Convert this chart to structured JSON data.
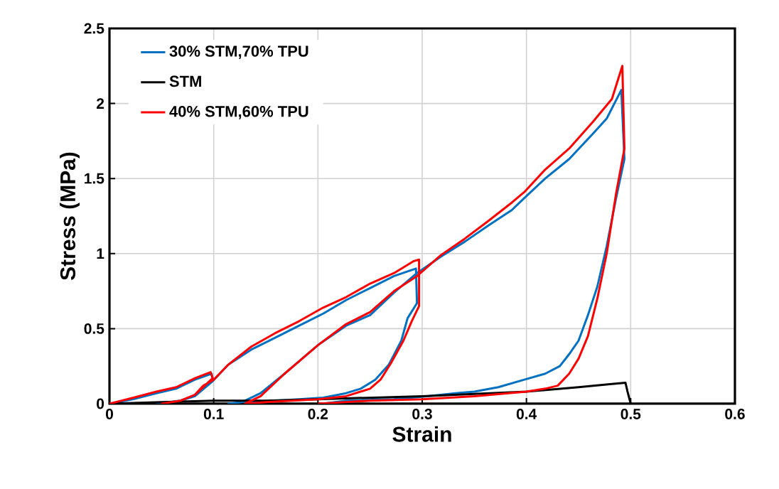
{
  "chart_data": {
    "type": "line",
    "xlabel": "Strain",
    "ylabel": "Stress (MPa)",
    "xlim": [
      0,
      0.6
    ],
    "ylim": [
      0,
      2.5
    ],
    "xticks": [
      0,
      0.1,
      0.2,
      0.3,
      0.4,
      0.5,
      0.6
    ],
    "yticks": [
      0,
      0.5,
      1,
      1.5,
      2,
      2.5
    ],
    "grid": true,
    "legend": "top left",
    "marker": "none",
    "line_style": "solid",
    "series": [
      {
        "name": "30% STM,70% TPU",
        "color": "#0070c0",
        "x": [
          0,
          0.023,
          0.045,
          0.064,
          0.082,
          0.098,
          0.099,
          0.082,
          0.068,
          0.045,
          0.068,
          0.082,
          0.099,
          0.114,
          0.136,
          0.159,
          0.182,
          0.205,
          0.227,
          0.25,
          0.273,
          0.294,
          0.295,
          0.286,
          0.28,
          0.268,
          0.255,
          0.241,
          0.227,
          0.205,
          0.182,
          0.159,
          0.127,
          0.114,
          0.127,
          0.145,
          0.168,
          0.2,
          0.227,
          0.25,
          0.273,
          0.295,
          0.318,
          0.341,
          0.364,
          0.386,
          0.398,
          0.418,
          0.441,
          0.464,
          0.477,
          0.491,
          0.494,
          0.486,
          0.477,
          0.468,
          0.459,
          0.45,
          0.441,
          0.432,
          0.418,
          0.398,
          0.373,
          0.35,
          0.332,
          0.305,
          0.273,
          0.227,
          0.205
        ],
        "values": [
          0,
          0.03,
          0.07,
          0.1,
          0.16,
          0.2,
          0.16,
          0.05,
          0.02,
          0,
          0.02,
          0.05,
          0.15,
          0.26,
          0.36,
          0.44,
          0.52,
          0.6,
          0.69,
          0.77,
          0.85,
          0.9,
          0.67,
          0.57,
          0.42,
          0.26,
          0.16,
          0.1,
          0.07,
          0.04,
          0.03,
          0.02,
          0.01,
          0,
          0.01,
          0.07,
          0.2,
          0.39,
          0.52,
          0.59,
          0.74,
          0.87,
          0.98,
          1.08,
          1.19,
          1.29,
          1.37,
          1.5,
          1.63,
          1.8,
          1.9,
          2.09,
          1.63,
          1.37,
          1.05,
          0.78,
          0.59,
          0.42,
          0.33,
          0.25,
          0.2,
          0.16,
          0.11,
          0.08,
          0.07,
          0.05,
          0.03,
          0.02,
          0
        ]
      },
      {
        "name": "STM",
        "color": "#000000",
        "x": [
          0,
          0.05,
          0.1,
          0.15,
          0.2,
          0.3,
          0.4,
          0.45,
          0.48,
          0.495,
          0.497,
          0.5
        ],
        "values": [
          0,
          0.01,
          0.02,
          0.02,
          0.03,
          0.05,
          0.08,
          0.11,
          0.13,
          0.14,
          0.08,
          0
        ]
      },
      {
        "name": "40% STM,60% TPU",
        "color": "#ff0000",
        "x": [
          0,
          0.023,
          0.045,
          0.064,
          0.082,
          0.097,
          0.099,
          0.082,
          0.068,
          0.05,
          0.068,
          0.082,
          0.09,
          0.1,
          0.114,
          0.136,
          0.159,
          0.182,
          0.205,
          0.227,
          0.25,
          0.273,
          0.292,
          0.297,
          0.297,
          0.29,
          0.282,
          0.27,
          0.26,
          0.25,
          0.227,
          0.2,
          0.15,
          0.13,
          0.145,
          0.168,
          0.2,
          0.227,
          0.25,
          0.273,
          0.295,
          0.318,
          0.341,
          0.364,
          0.386,
          0.398,
          0.418,
          0.441,
          0.464,
          0.482,
          0.492,
          0.494,
          0.486,
          0.477,
          0.468,
          0.459,
          0.45,
          0.441,
          0.43,
          0.418,
          0.4,
          0.35,
          0.3,
          0.25,
          0.2
        ],
        "values": [
          0,
          0.04,
          0.08,
          0.11,
          0.17,
          0.21,
          0.17,
          0.06,
          0.02,
          0,
          0.02,
          0.06,
          0.12,
          0.16,
          0.26,
          0.38,
          0.47,
          0.55,
          0.64,
          0.71,
          0.8,
          0.87,
          0.95,
          0.96,
          0.65,
          0.55,
          0.42,
          0.27,
          0.16,
          0.1,
          0.05,
          0.03,
          0.01,
          0,
          0.05,
          0.2,
          0.39,
          0.53,
          0.61,
          0.75,
          0.85,
          0.99,
          1.1,
          1.22,
          1.34,
          1.41,
          1.56,
          1.7,
          1.88,
          2.03,
          2.25,
          1.7,
          1.4,
          1.0,
          0.7,
          0.45,
          0.3,
          0.2,
          0.12,
          0.1,
          0.08,
          0.05,
          0.03,
          0.02,
          0
        ]
      }
    ]
  }
}
